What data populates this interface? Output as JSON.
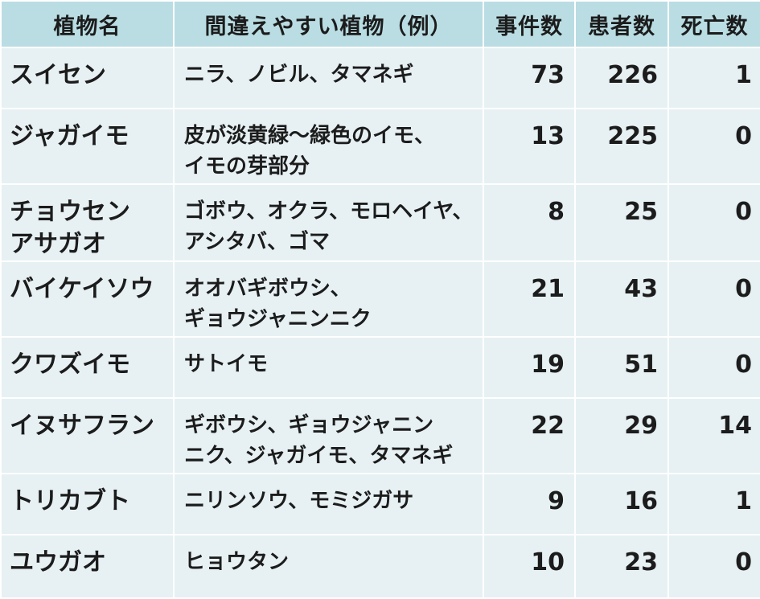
{
  "header": {
    "plant_name": "植物名",
    "confused_with": "間違えやすい植物（例）",
    "incidents": "事件数",
    "patients": "患者数",
    "deaths": "死亡数"
  },
  "rows": [
    {
      "plant": [
        "スイセン"
      ],
      "confused": [
        "ニラ、ノビル、タマネギ"
      ],
      "incidents": "73",
      "patients": "226",
      "deaths": "1"
    },
    {
      "plant": [
        "ジャガイモ"
      ],
      "confused": [
        "皮が淡黄緑～緑色のイモ、",
        "イモの芽部分"
      ],
      "incidents": "13",
      "patients": "225",
      "deaths": "0"
    },
    {
      "plant": [
        "チョウセン",
        "アサガオ"
      ],
      "confused": [
        "ゴボウ、オクラ、モロヘイヤ、",
        "アシタバ、ゴマ"
      ],
      "incidents": "8",
      "patients": "25",
      "deaths": "0"
    },
    {
      "plant": [
        "バイケイソウ"
      ],
      "confused": [
        "オオバギボウシ、",
        "ギョウジャニンニク"
      ],
      "incidents": "21",
      "patients": "43",
      "deaths": "0"
    },
    {
      "plant": [
        "クワズイモ"
      ],
      "confused": [
        "サトイモ"
      ],
      "incidents": "19",
      "patients": "51",
      "deaths": "0"
    },
    {
      "plant": [
        "イヌサフラン"
      ],
      "confused": [
        "ギボウシ、ギョウジャニン",
        "ニク、ジャガイモ、タマネギ"
      ],
      "incidents": "22",
      "patients": "29",
      "deaths": "14"
    },
    {
      "plant": [
        "トリカブト"
      ],
      "confused": [
        "ニリンソウ、モミジガサ"
      ],
      "incidents": "9",
      "patients": "16",
      "deaths": "1"
    },
    {
      "plant": [
        "ユウガオ"
      ],
      "confused": [
        "ヒョウタン"
      ],
      "incidents": "10",
      "patients": "23",
      "deaths": "0"
    }
  ],
  "colors": {
    "header_bg": "#b9dde3",
    "cell_bg": "#e7f1f3",
    "text": "#1c1c1c"
  }
}
